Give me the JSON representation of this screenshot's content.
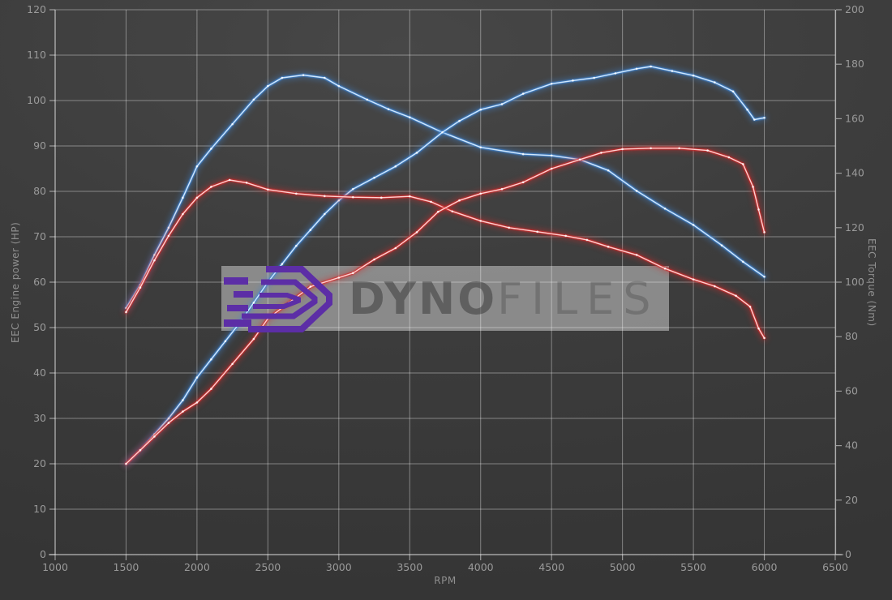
{
  "chart_data": {
    "type": "line",
    "xlabel": "RPM",
    "ylabel_left": "EEC Engine power (HP)",
    "ylabel_right": "EEC Torque (Nm)",
    "x_range": [
      1000,
      6500
    ],
    "x_ticks": [
      1000,
      1500,
      2000,
      2500,
      3000,
      3500,
      4000,
      4500,
      5000,
      5500,
      6000,
      6500
    ],
    "y_left_range": [
      0,
      120
    ],
    "y_left_ticks": [
      0,
      10,
      20,
      30,
      40,
      50,
      60,
      70,
      80,
      90,
      100,
      110,
      120
    ],
    "y_right_range": [
      0,
      200
    ],
    "y_right_ticks": [
      0,
      20,
      40,
      60,
      80,
      100,
      120,
      140,
      160,
      180,
      200
    ],
    "grid": true,
    "legend": "none",
    "colors": {
      "blue": "#3f86d6",
      "blue_core": "#d9edff",
      "red": "#d62b2b",
      "red_core": "#ffdada",
      "grid": "rgba(255,255,255,0.38)",
      "axis": "rgba(255,255,255,0.5)",
      "tick_text": "#9a9a9a"
    },
    "series": [
      {
        "name": "torque-blue",
        "axis": "right",
        "unit": "Nm",
        "color": "#3f86d6",
        "core": "#d9edff",
        "points": [
          [
            1500,
            90.5
          ],
          [
            1600,
            99
          ],
          [
            1700,
            110
          ],
          [
            1800,
            120
          ],
          [
            1900,
            131
          ],
          [
            2000,
            142.5
          ],
          [
            2100,
            149
          ],
          [
            2250,
            158
          ],
          [
            2400,
            167
          ],
          [
            2500,
            172
          ],
          [
            2600,
            175
          ],
          [
            2750,
            176
          ],
          [
            2900,
            175
          ],
          [
            3000,
            172
          ],
          [
            3200,
            167
          ],
          [
            3350,
            163.5
          ],
          [
            3500,
            160.5
          ],
          [
            3730,
            155
          ],
          [
            4000,
            149.5
          ],
          [
            4300,
            147
          ],
          [
            4500,
            146.5
          ],
          [
            4700,
            145
          ],
          [
            4900,
            141
          ],
          [
            5100,
            133.5
          ],
          [
            5300,
            127
          ],
          [
            5500,
            121
          ],
          [
            5700,
            113.5
          ],
          [
            5850,
            107.5
          ],
          [
            6000,
            102
          ]
        ]
      },
      {
        "name": "power-blue",
        "axis": "left",
        "unit": "HP",
        "color": "#3f86d6",
        "core": "#d9edff",
        "points": [
          [
            1500,
            20
          ],
          [
            1600,
            23
          ],
          [
            1700,
            26.5
          ],
          [
            1800,
            30
          ],
          [
            1900,
            34
          ],
          [
            2000,
            39
          ],
          [
            2100,
            43
          ],
          [
            2200,
            47
          ],
          [
            2300,
            51
          ],
          [
            2400,
            55.5
          ],
          [
            2500,
            60
          ],
          [
            2600,
            64
          ],
          [
            2700,
            68
          ],
          [
            2800,
            71.5
          ],
          [
            2900,
            75
          ],
          [
            3000,
            78
          ],
          [
            3100,
            80.5
          ],
          [
            3250,
            83
          ],
          [
            3400,
            85.5
          ],
          [
            3550,
            88.5
          ],
          [
            3730,
            93
          ],
          [
            3850,
            95.5
          ],
          [
            4000,
            98
          ],
          [
            4150,
            99.2
          ],
          [
            4300,
            101.5
          ],
          [
            4500,
            103.7
          ],
          [
            4650,
            104.4
          ],
          [
            4800,
            105
          ],
          [
            4950,
            106
          ],
          [
            5100,
            107
          ],
          [
            5200,
            107.5
          ],
          [
            5350,
            106.5
          ],
          [
            5500,
            105.5
          ],
          [
            5650,
            104
          ],
          [
            5780,
            102
          ],
          [
            5880,
            98
          ],
          [
            5930,
            95.8
          ],
          [
            6000,
            96.2
          ]
        ]
      },
      {
        "name": "torque-red",
        "axis": "right",
        "unit": "Nm",
        "color": "#d62b2b",
        "core": "#ffdada",
        "points": [
          [
            1500,
            89
          ],
          [
            1600,
            98
          ],
          [
            1700,
            108
          ],
          [
            1800,
            117
          ],
          [
            1900,
            125
          ],
          [
            2000,
            131
          ],
          [
            2100,
            135
          ],
          [
            2230,
            137.5
          ],
          [
            2350,
            136.5
          ],
          [
            2500,
            134
          ],
          [
            2700,
            132.5
          ],
          [
            2900,
            131.6
          ],
          [
            3100,
            131.2
          ],
          [
            3300,
            131
          ],
          [
            3500,
            131.5
          ],
          [
            3650,
            129.5
          ],
          [
            3800,
            126
          ],
          [
            4000,
            122.5
          ],
          [
            4200,
            120
          ],
          [
            4400,
            118.5
          ],
          [
            4600,
            117
          ],
          [
            4750,
            115.5
          ],
          [
            4900,
            113
          ],
          [
            5100,
            110
          ],
          [
            5300,
            105
          ],
          [
            5500,
            101
          ],
          [
            5650,
            98.5
          ],
          [
            5800,
            95
          ],
          [
            5900,
            91
          ],
          [
            5960,
            83
          ],
          [
            6000,
            79.5
          ]
        ]
      },
      {
        "name": "power-red",
        "axis": "left",
        "unit": "HP",
        "color": "#d62b2b",
        "core": "#ffdada",
        "points": [
          [
            1500,
            20
          ],
          [
            1600,
            23
          ],
          [
            1700,
            26
          ],
          [
            1800,
            29
          ],
          [
            1900,
            31.5
          ],
          [
            2000,
            33.5
          ],
          [
            2100,
            36.5
          ],
          [
            2250,
            42
          ],
          [
            2400,
            47.5
          ],
          [
            2500,
            52
          ],
          [
            2650,
            55.5
          ],
          [
            2800,
            59
          ],
          [
            3000,
            61
          ],
          [
            3100,
            62
          ],
          [
            3250,
            65
          ],
          [
            3400,
            67.5
          ],
          [
            3550,
            71
          ],
          [
            3700,
            75.5
          ],
          [
            3850,
            78
          ],
          [
            4000,
            79.5
          ],
          [
            4150,
            80.5
          ],
          [
            4300,
            82
          ],
          [
            4500,
            85
          ],
          [
            4700,
            87
          ],
          [
            4850,
            88.5
          ],
          [
            5000,
            89.3
          ],
          [
            5200,
            89.5
          ],
          [
            5400,
            89.5
          ],
          [
            5600,
            89
          ],
          [
            5750,
            87.5
          ],
          [
            5850,
            86
          ],
          [
            5920,
            81
          ],
          [
            5960,
            76
          ],
          [
            6000,
            71
          ]
        ]
      }
    ]
  },
  "watermark": {
    "brand_bold": "DYNO",
    "brand_light": "FILES",
    "logo_color": "#5c2ea6"
  }
}
